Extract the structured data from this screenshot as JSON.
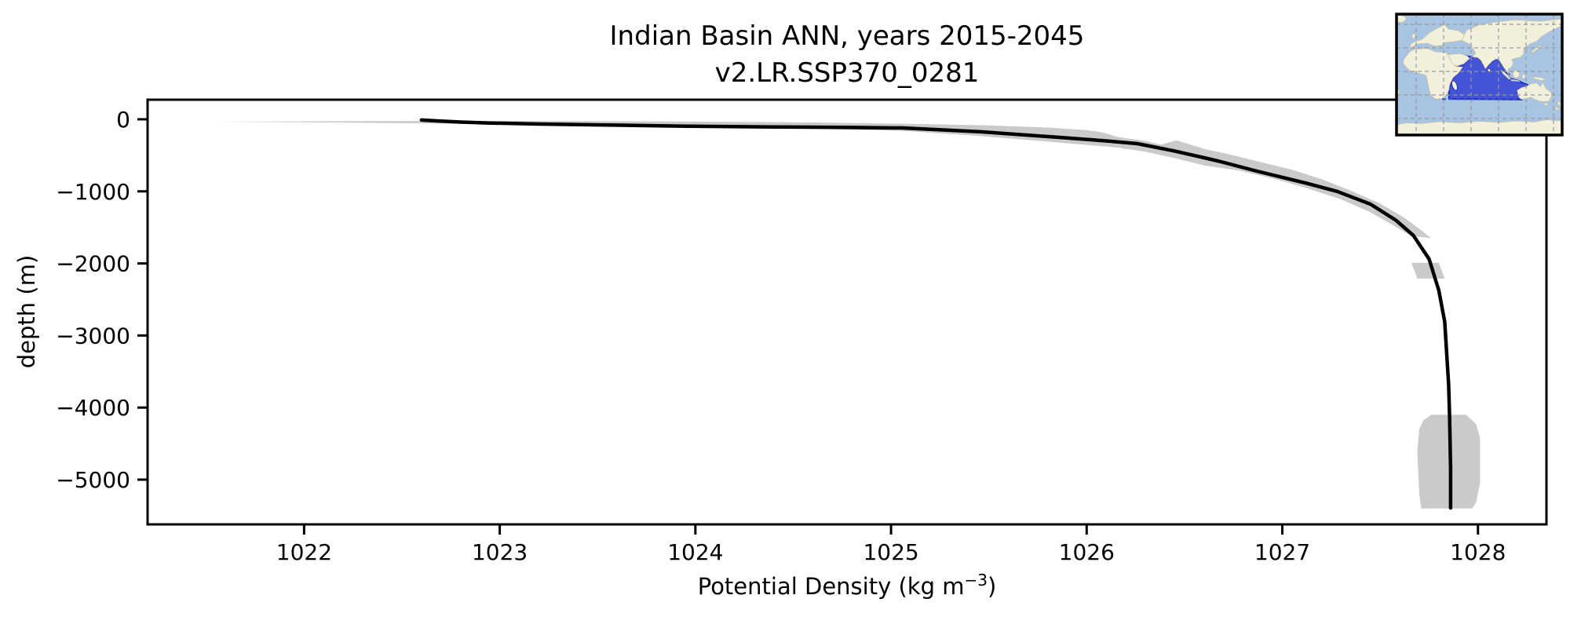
{
  "figure": {
    "title_line1": "Indian Basin ANN, years 2015-2045",
    "title_line2": "v2.LR.SSP370_0281"
  },
  "chart_data": {
    "type": "line",
    "title": "Indian Basin ANN, years 2015-2045",
    "subtitle": "v2.LR.SSP370_0281",
    "xlabel_prefix": "Potential Density (kg m",
    "xlabel_superscript": "−3",
    "xlabel_suffix": ")",
    "xlabel_plain": "Potential Density (kg m^-3)",
    "ylabel": "depth (m)",
    "xlim": [
      1021.2,
      1028.35
    ],
    "ylim": [
      -5621,
      272
    ],
    "x_ticks": [
      1022,
      1023,
      1024,
      1025,
      1026,
      1027,
      1028
    ],
    "x_tick_labels": [
      "1022",
      "1023",
      "1024",
      "1025",
      "1026",
      "1027",
      "1028"
    ],
    "y_ticks": [
      0,
      -1000,
      -2000,
      -3000,
      -4000,
      -5000
    ],
    "y_tick_labels": [
      "0",
      "−1000",
      "−2000",
      "−3000",
      "−4000",
      "−5000"
    ],
    "grid": false,
    "legend": null,
    "line_color": "#000000",
    "band_color": "#cacaca",
    "series": [
      {
        "name": "ensemble-mean-density-profile",
        "color": "#000000",
        "points_density_depth": [
          [
            1022.6,
            -10
          ],
          [
            1022.68,
            -22
          ],
          [
            1022.8,
            -38
          ],
          [
            1022.95,
            -52
          ],
          [
            1023.2,
            -66
          ],
          [
            1023.55,
            -80
          ],
          [
            1023.95,
            -95
          ],
          [
            1024.4,
            -106
          ],
          [
            1024.8,
            -114
          ],
          [
            1025.06,
            -120
          ],
          [
            1025.46,
            -174
          ],
          [
            1025.86,
            -251
          ],
          [
            1026.1,
            -300
          ],
          [
            1026.26,
            -338
          ],
          [
            1026.45,
            -440
          ],
          [
            1026.67,
            -578
          ],
          [
            1026.87,
            -719
          ],
          [
            1027.12,
            -885
          ],
          [
            1027.28,
            -1000
          ],
          [
            1027.45,
            -1177
          ],
          [
            1027.58,
            -1400
          ],
          [
            1027.67,
            -1612
          ],
          [
            1027.75,
            -1939
          ],
          [
            1027.8,
            -2375
          ],
          [
            1027.83,
            -2810
          ],
          [
            1027.84,
            -3246
          ],
          [
            1027.85,
            -3681
          ],
          [
            1027.855,
            -4118
          ],
          [
            1027.86,
            -4847
          ],
          [
            1027.86,
            -5392
          ]
        ]
      }
    ],
    "band_polygon_density_depth": [
      [
        1021.55,
        -33
      ],
      [
        1022.3,
        -25
      ],
      [
        1023.1,
        -23
      ],
      [
        1023.9,
        -30
      ],
      [
        1024.6,
        -44
      ],
      [
        1025.1,
        -62
      ],
      [
        1025.5,
        -85
      ],
      [
        1025.8,
        -115
      ],
      [
        1026.0,
        -150
      ],
      [
        1026.08,
        -180
      ],
      [
        1026.16,
        -245
      ],
      [
        1026.3,
        -300
      ],
      [
        1026.38,
        -352
      ],
      [
        1026.46,
        -292
      ],
      [
        1026.6,
        -410
      ],
      [
        1026.75,
        -500
      ],
      [
        1026.9,
        -600
      ],
      [
        1027.05,
        -700
      ],
      [
        1027.2,
        -830
      ],
      [
        1027.35,
        -990
      ],
      [
        1027.5,
        -1170
      ],
      [
        1027.62,
        -1360
      ],
      [
        1027.71,
        -1540
      ],
      [
        1027.76,
        -1650
      ],
      [
        1027.66,
        -1620
      ],
      [
        1027.56,
        -1460
      ],
      [
        1027.45,
        -1290
      ],
      [
        1027.3,
        -1110
      ],
      [
        1027.12,
        -950
      ],
      [
        1026.95,
        -820
      ],
      [
        1026.78,
        -710
      ],
      [
        1026.6,
        -640
      ],
      [
        1026.45,
        -540
      ],
      [
        1026.3,
        -450
      ],
      [
        1026.15,
        -390
      ],
      [
        1025.86,
        -323
      ],
      [
        1025.45,
        -230
      ],
      [
        1025.06,
        -160
      ],
      [
        1024.55,
        -128
      ],
      [
        1024.0,
        -105
      ],
      [
        1023.4,
        -85
      ],
      [
        1022.8,
        -62
      ],
      [
        1022.2,
        -45
      ]
    ],
    "detached_band_patches": [
      [
        [
          1027.66,
          -1990
        ],
        [
          1027.8,
          -1990
        ],
        [
          1027.83,
          -2210
        ],
        [
          1027.69,
          -2210
        ]
      ],
      [
        [
          1027.76,
          -4100
        ],
        [
          1027.94,
          -4100
        ],
        [
          1027.99,
          -4230
        ],
        [
          1028.01,
          -4420
        ],
        [
          1028.01,
          -5050
        ],
        [
          1027.99,
          -5320
        ],
        [
          1027.97,
          -5400
        ],
        [
          1027.71,
          -5400
        ],
        [
          1027.7,
          -5200
        ],
        [
          1027.69,
          -4600
        ],
        [
          1027.7,
          -4300
        ],
        [
          1027.72,
          -4180
        ]
      ]
    ],
    "inset_map": {
      "label": "Indian Ocean basin highlighted on world map",
      "ocean": "#a7c4e3",
      "land": "#f2efdc",
      "land_edge": "#c6c0a4",
      "basin_fill": "#4355d6",
      "basin_edge": "#1f2dc2",
      "boundary_dash": "#3b49e0",
      "grid": "#999999",
      "border": "#000000"
    }
  }
}
